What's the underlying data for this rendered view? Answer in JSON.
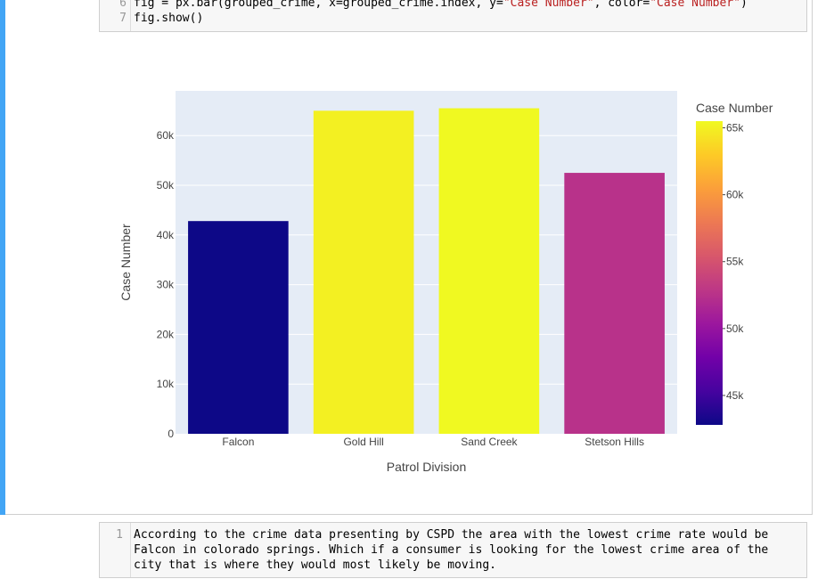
{
  "code_cell": {
    "lines": [
      {
        "number": "6",
        "pre": "fig = px.bar(grouped_crime, x=grouped_crime.index, y=",
        "str1": "\"Case Number\"",
        "mid": ", color=",
        "str2": "\"Case Number\"",
        "post": ")"
      },
      {
        "number": "7",
        "text": "fig.show()"
      }
    ]
  },
  "chart_data": {
    "type": "bar",
    "categories": [
      "Falcon",
      "Gold Hill",
      "Sand Creek",
      "Stetson Hills"
    ],
    "values": [
      42800,
      65000,
      65500,
      52500
    ],
    "xlabel": "Patrol Division",
    "ylabel": "Case Number",
    "ylim": [
      0,
      69000
    ],
    "yticks": [
      0,
      10000,
      20000,
      30000,
      40000,
      50000,
      60000
    ],
    "ytick_labels": [
      "0",
      "10k",
      "20k",
      "30k",
      "40k",
      "50k",
      "60k"
    ],
    "grid": true,
    "colorbar": {
      "title": "Case Number",
      "range": [
        42800,
        65500
      ],
      "ticks": [
        45000,
        50000,
        55000,
        60000,
        65000
      ],
      "tick_labels": [
        "45k",
        "50k",
        "55k",
        "60k",
        "65k"
      ],
      "colorscale": [
        "#0d0887",
        "#46039f",
        "#7201a8",
        "#9c179e",
        "#bd3786",
        "#d8576b",
        "#ed7953",
        "#fb9f3a",
        "#fdca26",
        "#f0f921"
      ]
    },
    "colors": {
      "plot_bg": "#e5ecf6",
      "grid": "#ffffff"
    }
  },
  "markdown_cell": {
    "line_number": "1",
    "lines": [
      "According to the crime data presenting by CSPD the area with the lowest crime rate would be",
      "Falcon in colorado springs. Which if a consumer is looking for the lowest crime area of the",
      "city that is where they would most likely be moving."
    ]
  }
}
